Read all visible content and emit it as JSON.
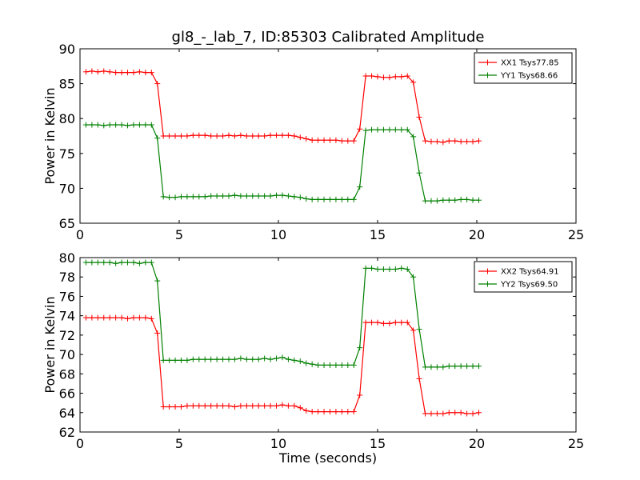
{
  "figure": {
    "title": "gl8_-_lab_7, ID:85303 Calibrated Amplitude",
    "xlabel": "Time (seconds)"
  },
  "chart_data": [
    {
      "type": "line",
      "title": "gl8_-_lab_7, ID:85303 Calibrated Amplitude",
      "xlabel": "",
      "ylabel": "Power in Kelvin",
      "xlim": [
        0,
        25
      ],
      "ylim": [
        65,
        90
      ],
      "xticks": [
        0,
        5,
        10,
        15,
        20,
        25
      ],
      "yticks": [
        65,
        70,
        75,
        80,
        85,
        90
      ],
      "grid": false,
      "legend": "top-right",
      "series": [
        {
          "name": "XX1 Tsys77.85",
          "color": "#ff0000",
          "x": [
            0.3,
            0.6,
            0.9,
            1.2,
            1.5,
            1.8,
            2.1,
            2.4,
            2.7,
            3.0,
            3.3,
            3.6,
            3.9,
            4.2,
            4.5,
            4.8,
            5.1,
            5.4,
            5.7,
            6.0,
            6.3,
            6.6,
            6.9,
            7.2,
            7.5,
            7.8,
            8.1,
            8.4,
            8.7,
            9.0,
            9.3,
            9.6,
            9.9,
            10.2,
            10.5,
            10.8,
            11.1,
            11.4,
            11.7,
            12.0,
            12.3,
            12.6,
            12.9,
            13.2,
            13.5,
            13.8,
            14.1,
            14.4,
            14.7,
            15.0,
            15.3,
            15.6,
            15.9,
            16.2,
            16.5,
            16.8,
            17.1,
            17.4,
            17.7,
            18.0,
            18.3,
            18.6,
            18.9,
            19.2,
            19.5,
            19.8,
            20.1
          ],
          "y": [
            86.7,
            86.8,
            86.7,
            86.8,
            86.7,
            86.6,
            86.6,
            86.6,
            86.6,
            86.7,
            86.6,
            86.6,
            85.0,
            77.5,
            77.5,
            77.5,
            77.5,
            77.5,
            77.6,
            77.6,
            77.6,
            77.5,
            77.5,
            77.5,
            77.6,
            77.5,
            77.6,
            77.5,
            77.5,
            77.5,
            77.5,
            77.6,
            77.6,
            77.6,
            77.6,
            77.5,
            77.3,
            77.1,
            76.9,
            76.9,
            76.9,
            76.9,
            76.9,
            76.8,
            76.8,
            76.8,
            78.5,
            86.1,
            86.1,
            86.0,
            85.9,
            85.9,
            86.0,
            86.0,
            86.1,
            85.2,
            80.2,
            76.8,
            76.7,
            76.7,
            76.6,
            76.8,
            76.8,
            76.7,
            76.7,
            76.7,
            76.8
          ]
        },
        {
          "name": "YY1 Tsys68.66",
          "color": "#008000",
          "x": [
            0.3,
            0.6,
            0.9,
            1.2,
            1.5,
            1.8,
            2.1,
            2.4,
            2.7,
            3.0,
            3.3,
            3.6,
            3.9,
            4.2,
            4.5,
            4.8,
            5.1,
            5.4,
            5.7,
            6.0,
            6.3,
            6.6,
            6.9,
            7.2,
            7.5,
            7.8,
            8.1,
            8.4,
            8.7,
            9.0,
            9.3,
            9.6,
            9.9,
            10.2,
            10.5,
            10.8,
            11.1,
            11.4,
            11.7,
            12.0,
            12.3,
            12.6,
            12.9,
            13.2,
            13.5,
            13.8,
            14.1,
            14.4,
            14.7,
            15.0,
            15.3,
            15.6,
            15.9,
            16.2,
            16.5,
            16.8,
            17.1,
            17.4,
            17.7,
            18.0,
            18.3,
            18.6,
            18.9,
            19.2,
            19.5,
            19.8,
            20.1
          ],
          "y": [
            79.1,
            79.1,
            79.1,
            79.0,
            79.1,
            79.1,
            79.1,
            79.0,
            79.1,
            79.1,
            79.1,
            79.1,
            77.2,
            68.8,
            68.7,
            68.7,
            68.8,
            68.8,
            68.8,
            68.8,
            68.8,
            68.9,
            68.9,
            68.9,
            68.9,
            69.0,
            68.9,
            68.9,
            68.9,
            68.9,
            68.9,
            68.9,
            69.0,
            69.0,
            68.9,
            68.8,
            68.7,
            68.5,
            68.4,
            68.4,
            68.4,
            68.4,
            68.4,
            68.4,
            68.4,
            68.4,
            70.2,
            78.3,
            78.4,
            78.4,
            78.4,
            78.4,
            78.4,
            78.4,
            78.4,
            77.4,
            72.2,
            68.2,
            68.2,
            68.2,
            68.3,
            68.3,
            68.3,
            68.4,
            68.4,
            68.3,
            68.3
          ]
        }
      ]
    },
    {
      "type": "line",
      "title": "",
      "xlabel": "Time (seconds)",
      "ylabel": "Power in Kelvin",
      "xlim": [
        0,
        25
      ],
      "ylim": [
        62,
        80
      ],
      "xticks": [
        0,
        5,
        10,
        15,
        20,
        25
      ],
      "yticks": [
        62,
        64,
        66,
        68,
        70,
        72,
        74,
        76,
        78,
        80
      ],
      "grid": false,
      "legend": "top-right",
      "series": [
        {
          "name": "XX2 Tsys64.91",
          "color": "#ff0000",
          "x": [
            0.3,
            0.6,
            0.9,
            1.2,
            1.5,
            1.8,
            2.1,
            2.4,
            2.7,
            3.0,
            3.3,
            3.6,
            3.9,
            4.2,
            4.5,
            4.8,
            5.1,
            5.4,
            5.7,
            6.0,
            6.3,
            6.6,
            6.9,
            7.2,
            7.5,
            7.8,
            8.1,
            8.4,
            8.7,
            9.0,
            9.3,
            9.6,
            9.9,
            10.2,
            10.5,
            10.8,
            11.1,
            11.4,
            11.7,
            12.0,
            12.3,
            12.6,
            12.9,
            13.2,
            13.5,
            13.8,
            14.1,
            14.4,
            14.7,
            15.0,
            15.3,
            15.6,
            15.9,
            16.2,
            16.5,
            16.8,
            17.1,
            17.4,
            17.7,
            18.0,
            18.3,
            18.6,
            18.9,
            19.2,
            19.5,
            19.8,
            20.1
          ],
          "y": [
            73.8,
            73.8,
            73.8,
            73.8,
            73.8,
            73.8,
            73.8,
            73.7,
            73.8,
            73.8,
            73.8,
            73.7,
            72.2,
            64.6,
            64.6,
            64.6,
            64.6,
            64.7,
            64.7,
            64.7,
            64.7,
            64.7,
            64.7,
            64.7,
            64.7,
            64.6,
            64.7,
            64.7,
            64.7,
            64.7,
            64.7,
            64.7,
            64.7,
            64.8,
            64.7,
            64.7,
            64.5,
            64.2,
            64.1,
            64.1,
            64.1,
            64.1,
            64.1,
            64.1,
            64.1,
            64.1,
            65.8,
            73.3,
            73.3,
            73.3,
            73.2,
            73.2,
            73.3,
            73.3,
            73.3,
            72.5,
            67.5,
            63.9,
            63.9,
            63.9,
            63.9,
            64.0,
            64.0,
            64.0,
            63.9,
            63.9,
            64.0
          ]
        },
        {
          "name": "YY2 Tsys69.50",
          "color": "#008000",
          "x": [
            0.3,
            0.6,
            0.9,
            1.2,
            1.5,
            1.8,
            2.1,
            2.4,
            2.7,
            3.0,
            3.3,
            3.6,
            3.9,
            4.2,
            4.5,
            4.8,
            5.1,
            5.4,
            5.7,
            6.0,
            6.3,
            6.6,
            6.9,
            7.2,
            7.5,
            7.8,
            8.1,
            8.4,
            8.7,
            9.0,
            9.3,
            9.6,
            9.9,
            10.2,
            10.5,
            10.8,
            11.1,
            11.4,
            11.7,
            12.0,
            12.3,
            12.6,
            12.9,
            13.2,
            13.5,
            13.8,
            14.1,
            14.4,
            14.7,
            15.0,
            15.3,
            15.6,
            15.9,
            16.2,
            16.5,
            16.8,
            17.1,
            17.4,
            17.7,
            18.0,
            18.3,
            18.6,
            18.9,
            19.2,
            19.5,
            19.8,
            20.1
          ],
          "y": [
            79.5,
            79.5,
            79.5,
            79.5,
            79.5,
            79.4,
            79.5,
            79.5,
            79.5,
            79.4,
            79.5,
            79.5,
            77.6,
            69.4,
            69.4,
            69.4,
            69.4,
            69.4,
            69.5,
            69.5,
            69.5,
            69.5,
            69.5,
            69.5,
            69.5,
            69.5,
            69.6,
            69.5,
            69.5,
            69.5,
            69.6,
            69.5,
            69.6,
            69.7,
            69.5,
            69.4,
            69.3,
            69.1,
            69.0,
            68.9,
            68.9,
            68.9,
            68.9,
            68.9,
            68.9,
            68.9,
            70.7,
            78.9,
            78.9,
            78.8,
            78.8,
            78.8,
            78.8,
            78.9,
            78.8,
            78.0,
            72.6,
            68.7,
            68.7,
            68.7,
            68.7,
            68.8,
            68.8,
            68.8,
            68.8,
            68.8,
            68.8
          ]
        }
      ]
    }
  ]
}
